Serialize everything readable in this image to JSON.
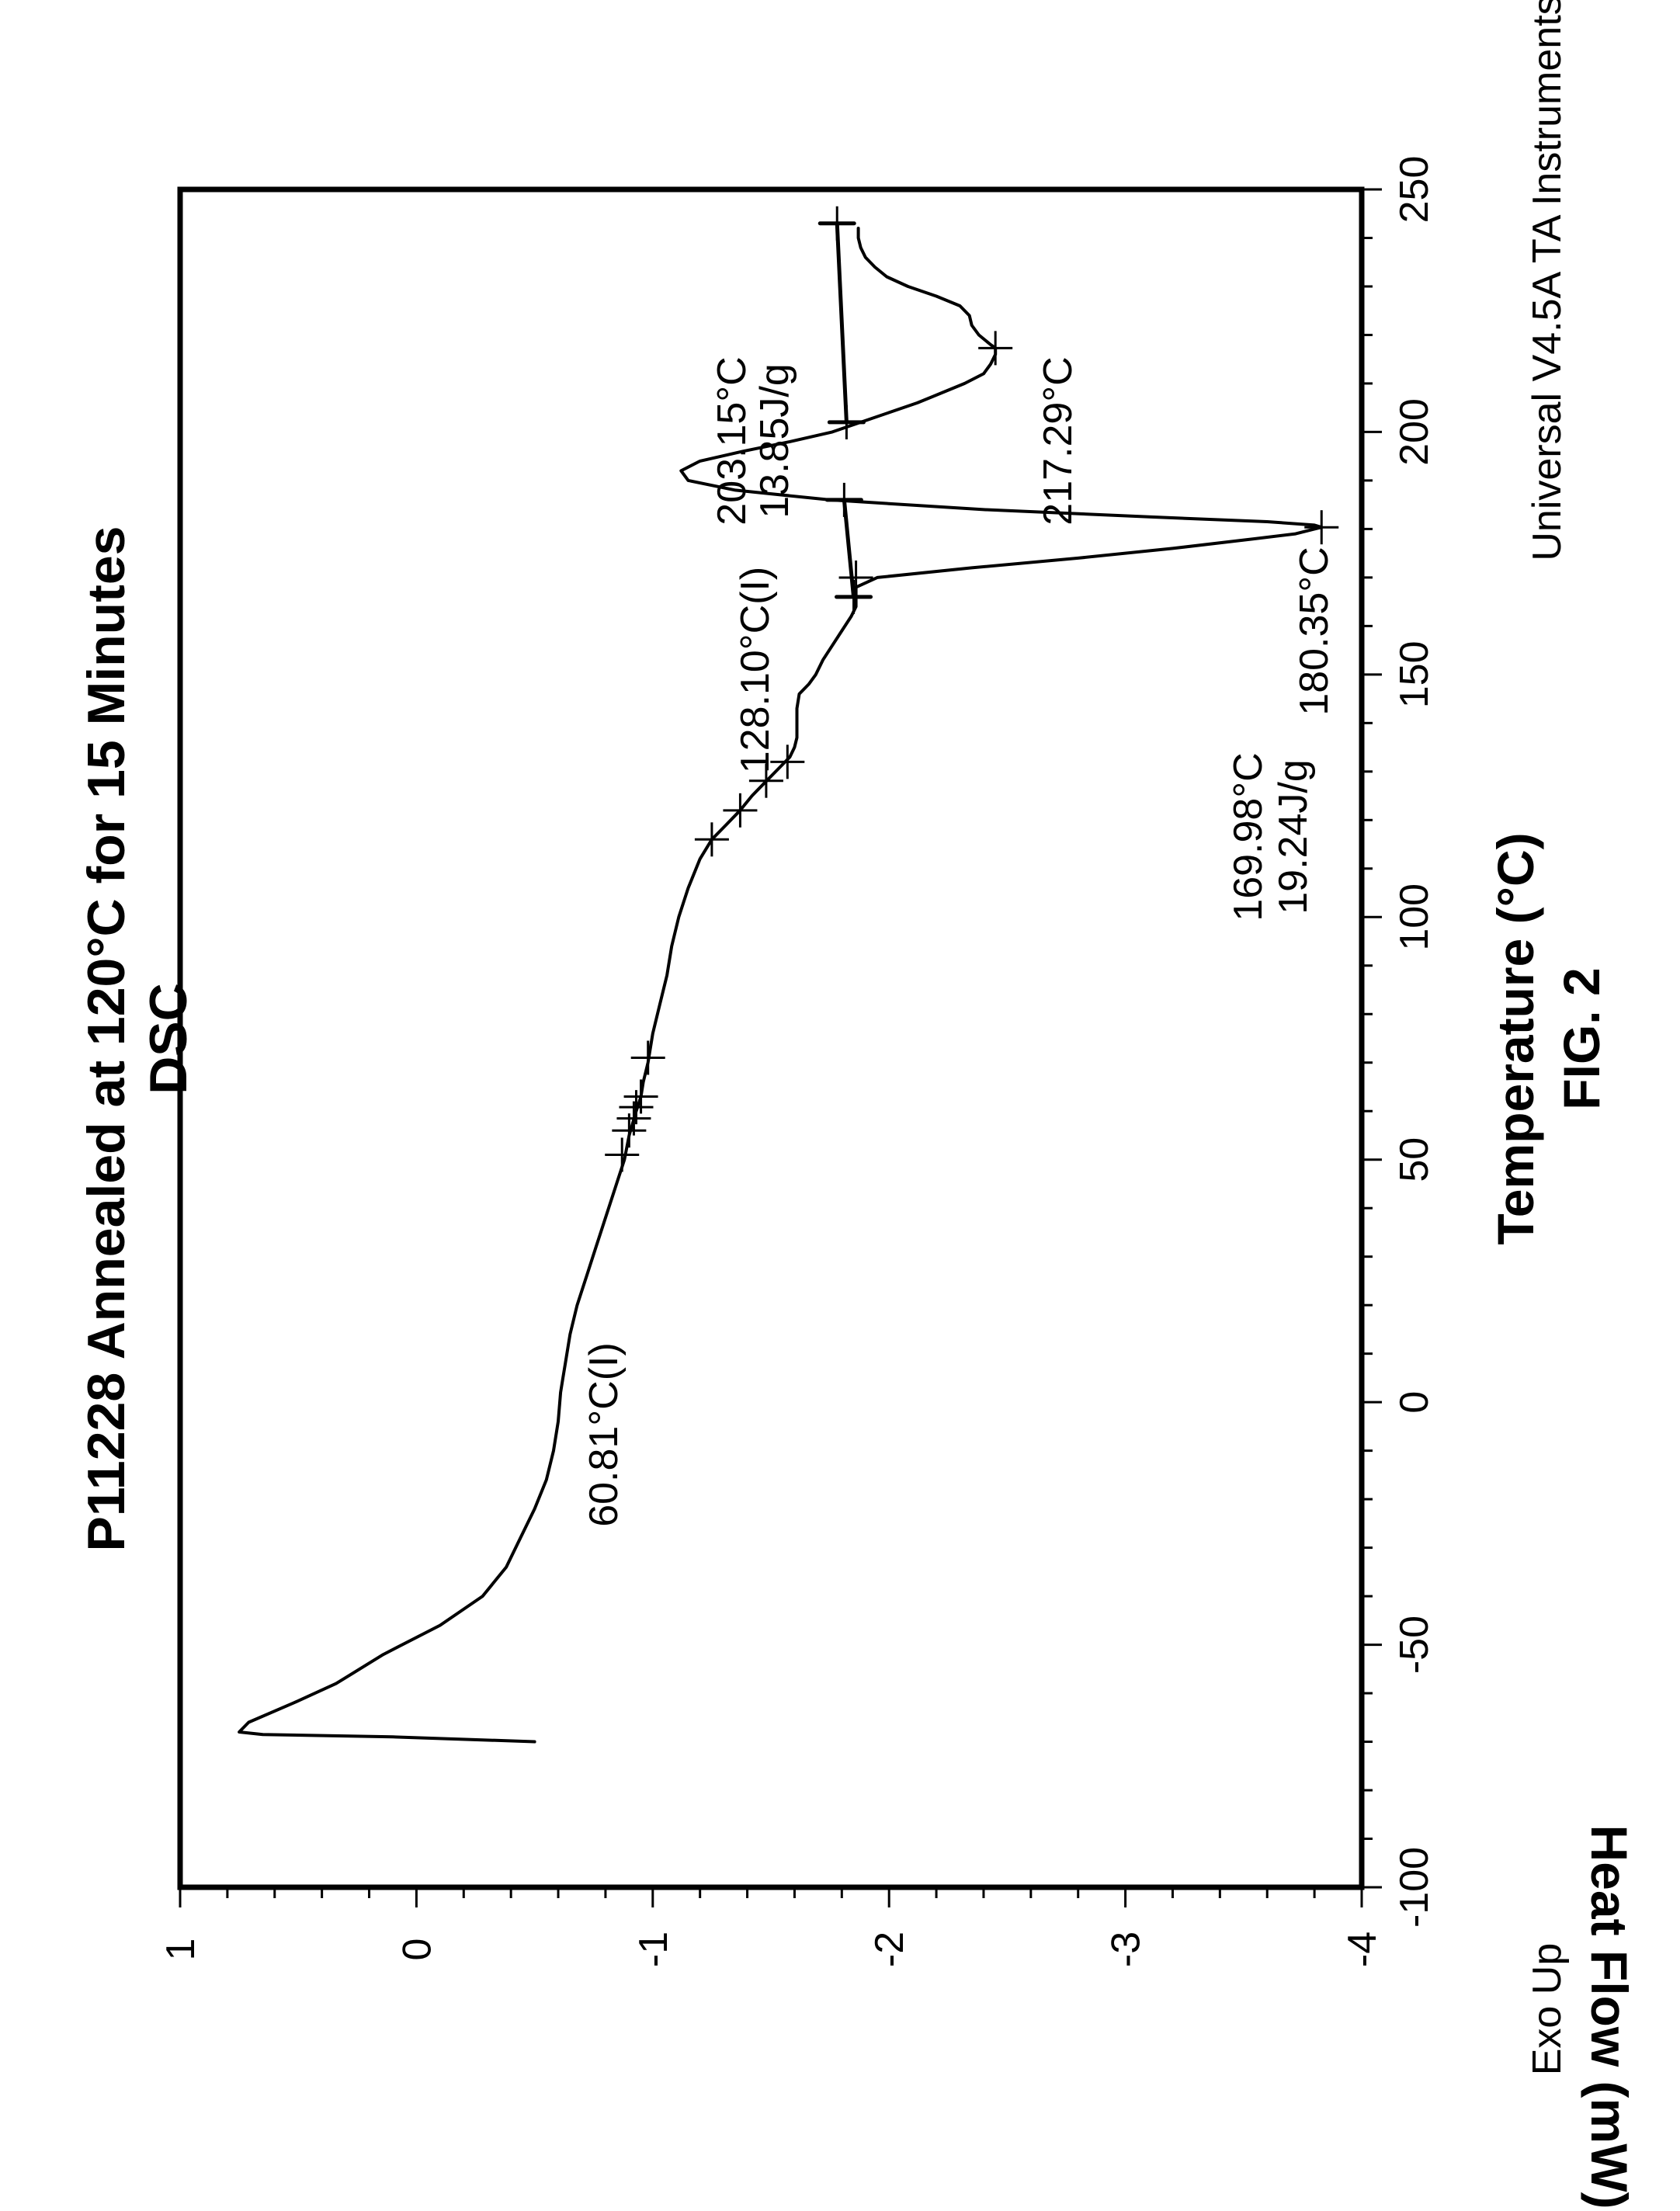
{
  "chart_data": {
    "type": "line",
    "title": "P11228 Annealed at 120°C for 15 Minutes",
    "subtitle": "DSC",
    "xlabel": "Temperature (°C)",
    "ylabel": "Heat Flow (mW)",
    "xlim": [
      -100,
      250
    ],
    "ylim": [
      -4,
      1
    ],
    "x_ticks": [
      -100,
      -50,
      0,
      50,
      100,
      150,
      200,
      250
    ],
    "x_tick_labels": [
      "-100",
      "-50",
      "0",
      "50",
      "100",
      "150",
      "200",
      "250"
    ],
    "y_ticks": [
      1,
      0,
      -1,
      -2,
      -3,
      -4
    ],
    "y_tick_labels": [
      "1",
      "0",
      "-1",
      "-2",
      "-3",
      "-4"
    ],
    "grid": false,
    "orientation": "rotated-90-ccw",
    "series": [
      {
        "x": [
          -70,
          -69,
          -68.5,
          -68,
          -66,
          -62,
          -58,
          -52,
          -46,
          -40,
          -34,
          -28,
          -22,
          -16,
          -10,
          -4,
          2,
          5,
          8,
          14,
          20,
          26,
          32,
          38,
          44,
          50,
          55,
          60,
          63,
          66,
          70,
          76,
          82,
          88,
          94,
          100,
          106,
          112,
          116,
          119,
          122,
          125,
          128,
          131,
          133,
          135,
          137,
          140,
          143,
          146,
          148,
          150,
          153,
          156,
          159,
          162,
          164,
          166,
          168,
          170,
          172,
          174,
          176,
          178,
          179,
          180,
          180.35,
          180.8,
          181.5,
          182.5,
          184,
          186,
          188,
          190,
          192,
          194,
          196,
          198,
          200,
          202,
          204,
          206,
          208,
          210,
          212,
          214,
          216,
          217.29,
          218,
          220,
          222,
          224,
          226,
          228,
          230,
          232,
          234,
          236,
          238,
          240,
          242
        ],
        "y": [
          -0.5,
          0.1,
          0.65,
          0.75,
          0.71,
          0.52,
          0.34,
          0.14,
          -0.1,
          -0.28,
          -0.38,
          -0.44,
          -0.5,
          -0.55,
          -0.58,
          -0.6,
          -0.61,
          -0.62,
          -0.63,
          -0.65,
          -0.68,
          -0.72,
          -0.76,
          -0.8,
          -0.84,
          -0.88,
          -0.9,
          -0.93,
          -0.95,
          -0.96,
          -0.98,
          -1.0,
          -1.03,
          -1.06,
          -1.08,
          -1.11,
          -1.15,
          -1.2,
          -1.25,
          -1.31,
          -1.37,
          -1.42,
          -1.48,
          -1.54,
          -1.58,
          -1.6,
          -1.61,
          -1.61,
          -1.61,
          -1.62,
          -1.66,
          -1.69,
          -1.72,
          -1.76,
          -1.8,
          -1.84,
          -1.86,
          -1.86,
          -1.86,
          -1.95,
          -2.35,
          -2.8,
          -3.2,
          -3.55,
          -3.72,
          -3.8,
          -3.83,
          -3.8,
          -3.6,
          -3.1,
          -2.4,
          -1.75,
          -1.35,
          -1.15,
          -1.12,
          -1.2,
          -1.38,
          -1.58,
          -1.76,
          -1.88,
          -2.0,
          -2.12,
          -2.22,
          -2.32,
          -2.4,
          -2.43,
          -2.45,
          -2.45,
          -2.43,
          -2.38,
          -2.35,
          -2.34,
          -2.3,
          -2.2,
          -2.08,
          -1.99,
          -1.94,
          -1.9,
          -1.88,
          -1.87,
          -1.87
        ]
      }
    ],
    "integration_baselines": [
      {
        "x": [
          166,
          186
        ],
        "y": [
          -1.85,
          -1.81
        ]
      },
      {
        "x": [
          202,
          243
        ],
        "y": [
          -1.82,
          -1.78
        ]
      }
    ],
    "transition_marks": [
      {
        "x": 51,
        "y": -0.87
      },
      {
        "x": 56,
        "y": -0.9
      },
      {
        "x": 58.5,
        "y": -0.92
      },
      {
        "x": 60.81,
        "y": -0.93
      },
      {
        "x": 63,
        "y": -0.95
      },
      {
        "x": 71,
        "y": -0.98
      },
      {
        "x": 116,
        "y": -1.25
      },
      {
        "x": 122,
        "y": -1.37
      },
      {
        "x": 128.1,
        "y": -1.48
      },
      {
        "x": 132,
        "y": -1.57
      },
      {
        "x": 166,
        "y": -1.85
      },
      {
        "x": 169.98,
        "y": -1.86
      },
      {
        "x": 180.35,
        "y": -3.83
      },
      {
        "x": 186,
        "y": -1.81
      },
      {
        "x": 202,
        "y": -1.82
      },
      {
        "x": 217.29,
        "y": -2.45
      },
      {
        "x": 243,
        "y": -1.78
      }
    ],
    "annotations": [
      "60.81°C(I)",
      "128.10°C(I)",
      "169.98°C",
      "19.24J/g",
      "180.35°C",
      "203.15°C",
      "13.85J/g",
      "217.29°C"
    ],
    "fig_label": "FIG. 2",
    "exo_label": "Exo Up",
    "instrument": "Universal V4.5A TA Instruments"
  }
}
